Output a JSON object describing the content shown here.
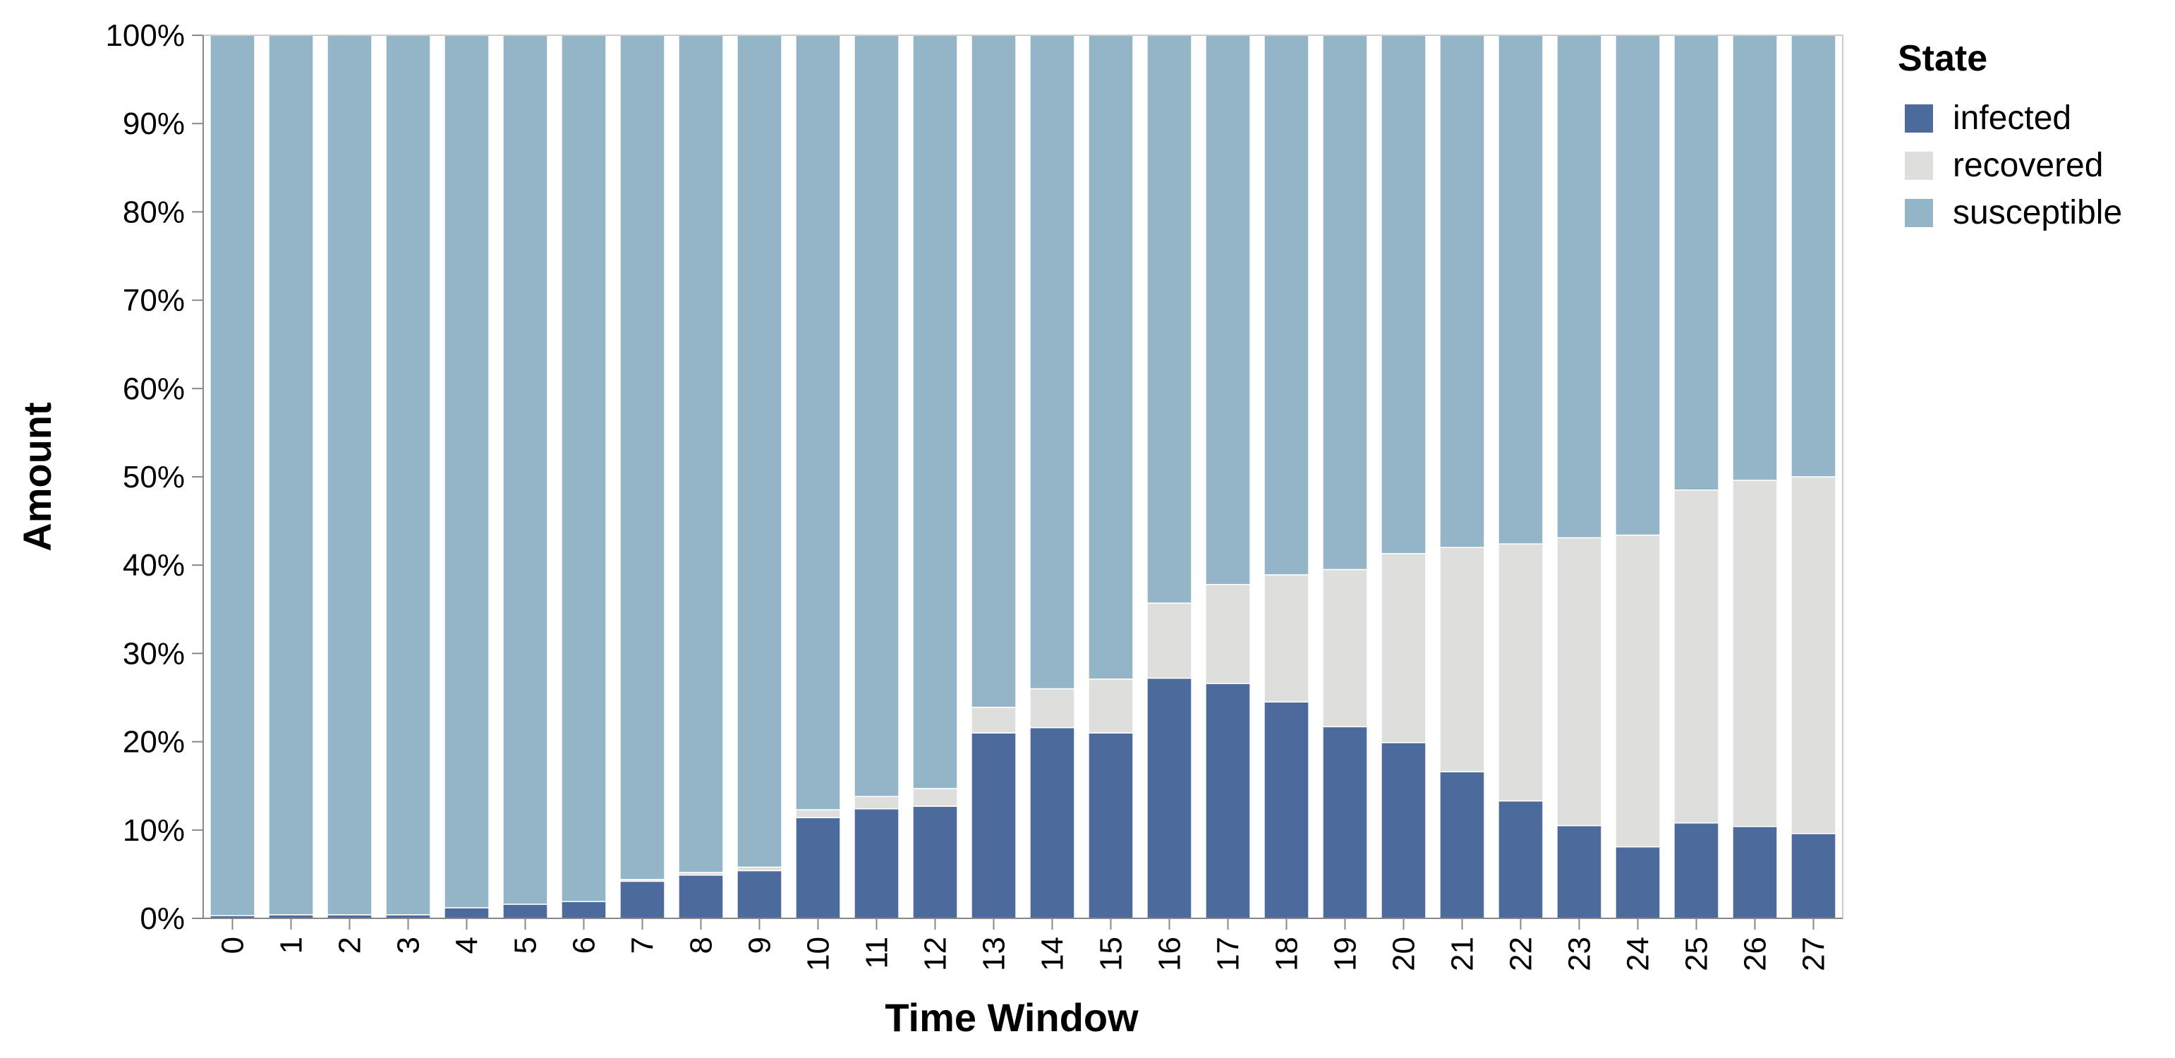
{
  "chart_data": {
    "type": "bar",
    "stacked": "normalized",
    "xlabel": "Time Window",
    "ylabel": "Amount",
    "categories": [
      "0",
      "1",
      "2",
      "3",
      "4",
      "5",
      "6",
      "7",
      "8",
      "9",
      "10",
      "11",
      "12",
      "13",
      "14",
      "15",
      "16",
      "17",
      "18",
      "19",
      "20",
      "21",
      "22",
      "23",
      "24",
      "25",
      "26",
      "27"
    ],
    "ylim": [
      0,
      100
    ],
    "yticks": [
      "0%",
      "10%",
      "20%",
      "30%",
      "40%",
      "50%",
      "60%",
      "70%",
      "80%",
      "90%",
      "100%"
    ],
    "grid": false,
    "legend": {
      "title": "State",
      "placement": "right",
      "entries": [
        "infected",
        "recovered",
        "susceptible"
      ]
    },
    "series": [
      {
        "name": "infected",
        "color": "#4c6a9c",
        "values": [
          0.3,
          0.4,
          0.4,
          0.4,
          1.2,
          1.6,
          1.9,
          4.2,
          4.9,
          5.4,
          11.4,
          12.4,
          12.7,
          21.0,
          21.6,
          21.0,
          27.2,
          26.6,
          24.5,
          21.7,
          19.9,
          16.6,
          13.3,
          10.5,
          8.1,
          10.8,
          10.4,
          9.6
        ]
      },
      {
        "name": "recovered",
        "color": "#dededd",
        "values": [
          0,
          0,
          0,
          0,
          0,
          0,
          0,
          0.2,
          0.3,
          0.4,
          0.9,
          1.4,
          2.0,
          2.9,
          4.4,
          6.1,
          8.5,
          11.2,
          14.4,
          17.8,
          21.4,
          25.4,
          29.1,
          32.6,
          35.3,
          37.7,
          39.2,
          40.4
        ]
      },
      {
        "name": "susceptible",
        "color": "#94b5c8",
        "values": [
          99.7,
          99.6,
          99.6,
          99.6,
          98.8,
          98.4,
          98.1,
          95.6,
          94.8,
          94.2,
          87.7,
          86.2,
          85.3,
          76.1,
          74.0,
          72.9,
          64.3,
          62.2,
          61.1,
          60.5,
          58.7,
          58.0,
          57.6,
          56.9,
          56.6,
          51.5,
          50.4,
          50.0
        ]
      }
    ]
  }
}
